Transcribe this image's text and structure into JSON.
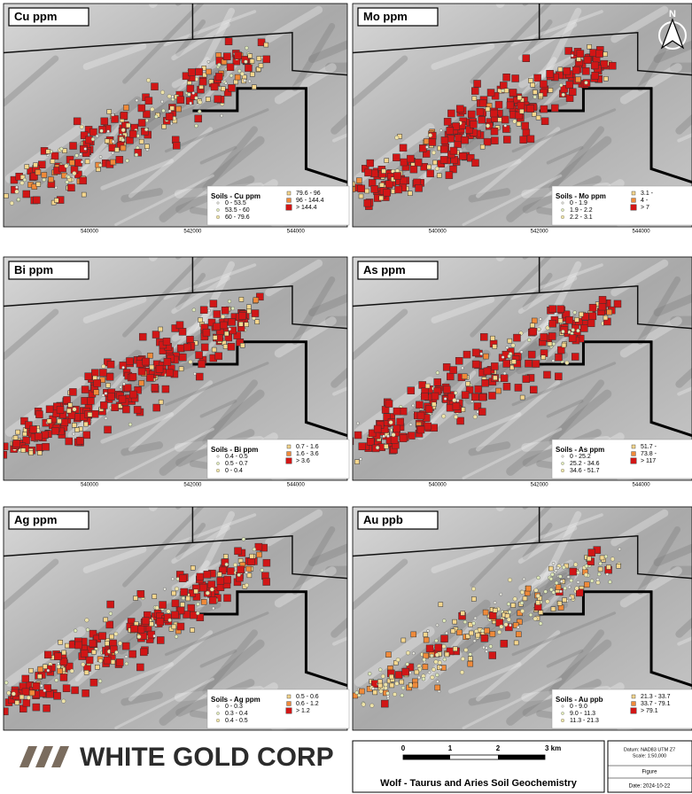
{
  "panels": [
    {
      "title": "Cu ppm",
      "legend": {
        "title": "Soils - Cu ppm",
        "items": [
          "0 - 53.5",
          "53.5 - 60",
          "60 - 79.6",
          "79.6 - 96",
          "96 - 144.4",
          "> 144.4"
        ]
      },
      "x_ticks": [
        "540000",
        "542000",
        "544000"
      ]
    },
    {
      "title": "Mo ppm",
      "legend": {
        "title": "Soils - Mo ppm",
        "items": [
          "0 - 1.9",
          "1.9 - 2.2",
          "2.2 - 3.1",
          "3.1 -",
          "4 -",
          "> 7"
        ]
      },
      "x_ticks": [
        "540000",
        "542000",
        "544000"
      ],
      "north": "N"
    },
    {
      "title": "Bi ppm",
      "legend": {
        "title": "Soils - Bi ppm",
        "items": [
          "0.4 - 0.5",
          "0.5 - 0.7",
          "0 - 0.4",
          "0.7 - 1.6",
          "1.6 - 3.6",
          "> 3.6"
        ]
      },
      "x_ticks": [
        "540000",
        "542000",
        "544000"
      ]
    },
    {
      "title": "As ppm",
      "legend": {
        "title": "Soils - As ppm",
        "items": [
          "0 - 25.2",
          "25.2 - 34.6",
          "34.6 - 51.7",
          "51.7 -",
          "73.8 -",
          "> 117"
        ]
      },
      "x_ticks": [
        "540000",
        "542000",
        "544000"
      ]
    },
    {
      "title": "Ag ppm",
      "legend": {
        "title": "Soils - Ag ppm",
        "items": [
          "0 - 0.3",
          "0.3 - 0.4",
          "0.4 - 0.5",
          "0.5 - 0.6",
          "0.6 - 1.2",
          "> 1.2"
        ]
      }
    },
    {
      "title": "Au ppb",
      "legend": {
        "title": "Soils - Au ppb",
        "items": [
          "0 - 9.0",
          "9.0 - 11.3",
          "11.3 - 21.3",
          "21.3 - 33.7",
          "33.7 - 79.1",
          "> 79.1"
        ]
      }
    }
  ],
  "footer": {
    "logo": "WHITE GOLD CORP",
    "scale_labels": [
      "0",
      "1",
      "2",
      "3 km"
    ],
    "title": "Wolf - Taurus and Aries Soil Geochemistry",
    "datum": "Datum: NAD83 UTM Z7",
    "scale": "Scale: 1:50,000",
    "figure": "Figure",
    "date": "Date: 2024-10-22"
  }
}
